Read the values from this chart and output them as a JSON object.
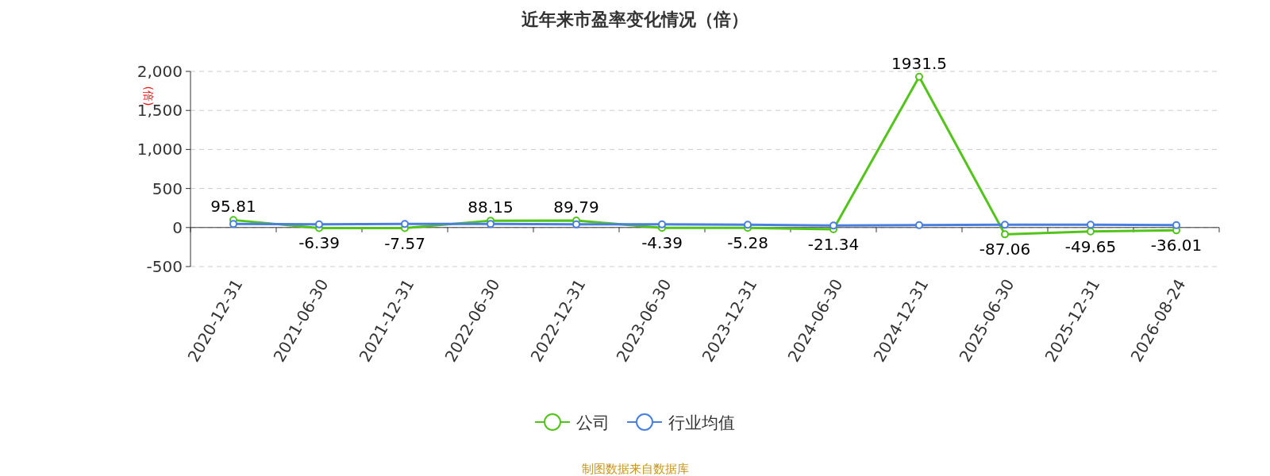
{
  "chart_data": {
    "type": "line",
    "title": "近年来市盈率变化情况（倍）",
    "ylabel": "(倍)",
    "categories": [
      "2020-12-31",
      "2021-06-30",
      "2021-12-31",
      "2022-06-30",
      "2022-12-31",
      "2023-06-30",
      "2023-12-31",
      "2024-06-30",
      "2024-12-31",
      "2025-06-30",
      "2025-12-31",
      "2026-08-24"
    ],
    "series": [
      {
        "name": "公司",
        "color": "#52c41a",
        "values": [
          95.81,
          -6.39,
          -7.57,
          88.15,
          89.79,
          -4.39,
          -5.28,
          -21.34,
          1931.5,
          -87.06,
          -49.65,
          -36.01
        ],
        "value_labels": [
          "95.81",
          "-6.39",
          "-7.57",
          "88.15",
          "89.79",
          "-4.39",
          "-5.28",
          "-21.34",
          "1931.5",
          "-87.06",
          "-49.65",
          "-36.01"
        ]
      },
      {
        "name": "行业均值",
        "color": "#4a7fe0",
        "values": [
          45,
          40,
          45,
          45,
          40,
          40,
          35,
          25,
          30,
          35,
          35,
          30
        ]
      }
    ],
    "ylim": [
      -500,
      2000
    ],
    "yticks": [
      {
        "value": -500,
        "label": "-500"
      },
      0,
      {
        "value": 500,
        "label": "500"
      },
      {
        "value": 1000,
        "label": "1,000"
      },
      {
        "value": 1500,
        "label": "1,500"
      },
      {
        "value": 2000,
        "label": "2,000"
      }
    ],
    "grid": "y",
    "legend": "bottom",
    "marker": "circle",
    "line_style": "solid",
    "annotations": [
      "制图数据来自数据库"
    ]
  }
}
